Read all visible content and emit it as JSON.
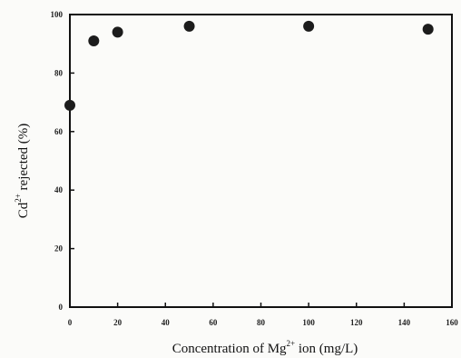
{
  "chart_data": {
    "type": "scatter",
    "title": "",
    "xlabel": "Concentration of Mg2+ ion (mg/L)",
    "ylabel": "Cd2+ rejected (%)",
    "xlabel_parts": {
      "prefix": "Concentration of Mg",
      "sup": "2+",
      "suffix": " ion (mg/L)"
    },
    "ylabel_parts": {
      "prefix": "Cd",
      "sup": "2+",
      "suffix": " rejected (%)"
    },
    "xlim": [
      0,
      160
    ],
    "ylim": [
      0,
      100
    ],
    "xticks": [
      0,
      20,
      40,
      60,
      80,
      100,
      120,
      140,
      160
    ],
    "yticks": [
      0,
      20,
      40,
      60,
      80,
      100
    ],
    "points": [
      {
        "x": 0,
        "y": 69
      },
      {
        "x": 10,
        "y": 91
      },
      {
        "x": 20,
        "y": 94
      },
      {
        "x": 50,
        "y": 96
      },
      {
        "x": 100,
        "y": 96
      },
      {
        "x": 150,
        "y": 95
      }
    ],
    "marker": "filled-circle",
    "marker_color": "#1c1c1c",
    "axis_color": "#111111",
    "grid": false
  }
}
